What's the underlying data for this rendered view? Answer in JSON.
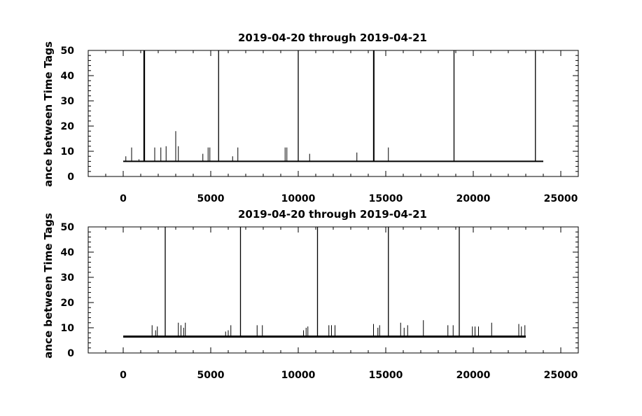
{
  "chart_data": [
    {
      "type": "line",
      "title": "2019-04-20 through 2019-04-21",
      "ylabel": "ance between Time Tags",
      "xlabel": "",
      "xlim": [
        -2000,
        26000
      ],
      "ylim": [
        0,
        50
      ],
      "xticks": [
        0,
        5000,
        10000,
        15000,
        20000,
        25000
      ],
      "yticks": [
        0,
        10,
        20,
        30,
        40,
        50
      ],
      "x_range": [
        0,
        24000
      ],
      "baseline": 6,
      "grid": false,
      "legend": "none",
      "series_color": "#000000",
      "spikes": [
        {
          "x": 150,
          "y": 8
        },
        {
          "x": 480,
          "y": 11.5
        },
        {
          "x": 900,
          "y": 6.8
        },
        {
          "x": 1180,
          "y": 50
        },
        {
          "x": 1220,
          "y": 50
        },
        {
          "x": 1800,
          "y": 11.5
        },
        {
          "x": 2150,
          "y": 11.5
        },
        {
          "x": 2450,
          "y": 12
        },
        {
          "x": 3000,
          "y": 18
        },
        {
          "x": 3150,
          "y": 12
        },
        {
          "x": 4550,
          "y": 9
        },
        {
          "x": 4850,
          "y": 11.5
        },
        {
          "x": 4950,
          "y": 11.5
        },
        {
          "x": 5450,
          "y": 50
        },
        {
          "x": 6250,
          "y": 8
        },
        {
          "x": 6550,
          "y": 11.5
        },
        {
          "x": 9250,
          "y": 11.5
        },
        {
          "x": 9350,
          "y": 11.5
        },
        {
          "x": 10000,
          "y": 50
        },
        {
          "x": 10650,
          "y": 9
        },
        {
          "x": 13350,
          "y": 9.5
        },
        {
          "x": 14300,
          "y": 50
        },
        {
          "x": 14330,
          "y": 50
        },
        {
          "x": 15150,
          "y": 11.5
        },
        {
          "x": 18900,
          "y": 50
        },
        {
          "x": 23550,
          "y": 50
        }
      ]
    },
    {
      "type": "line",
      "title": "2019-04-20 through 2019-04-21",
      "ylabel": "ance between Time Tags",
      "xlabel": "",
      "xlim": [
        -2000,
        26000
      ],
      "ylim": [
        0,
        50
      ],
      "xticks": [
        0,
        5000,
        10000,
        15000,
        20000,
        25000
      ],
      "yticks": [
        0,
        10,
        20,
        30,
        40,
        50
      ],
      "x_range": [
        0,
        23000
      ],
      "baseline": 6.5,
      "grid": false,
      "legend": "none",
      "series_color": "#000000",
      "spikes": [
        {
          "x": 1650,
          "y": 11
        },
        {
          "x": 1850,
          "y": 9
        },
        {
          "x": 1950,
          "y": 10.5
        },
        {
          "x": 2400,
          "y": 50
        },
        {
          "x": 3150,
          "y": 12
        },
        {
          "x": 3300,
          "y": 11
        },
        {
          "x": 3450,
          "y": 10
        },
        {
          "x": 3550,
          "y": 12
        },
        {
          "x": 5850,
          "y": 8.5
        },
        {
          "x": 6000,
          "y": 9
        },
        {
          "x": 6150,
          "y": 11
        },
        {
          "x": 6700,
          "y": 50
        },
        {
          "x": 7650,
          "y": 11
        },
        {
          "x": 7950,
          "y": 11
        },
        {
          "x": 10300,
          "y": 9
        },
        {
          "x": 10450,
          "y": 10
        },
        {
          "x": 10550,
          "y": 10.5
        },
        {
          "x": 11100,
          "y": 50
        },
        {
          "x": 11750,
          "y": 11
        },
        {
          "x": 11900,
          "y": 11
        },
        {
          "x": 12100,
          "y": 11
        },
        {
          "x": 14300,
          "y": 11.5
        },
        {
          "x": 14550,
          "y": 10
        },
        {
          "x": 14650,
          "y": 11
        },
        {
          "x": 15150,
          "y": 50
        },
        {
          "x": 15850,
          "y": 12
        },
        {
          "x": 16050,
          "y": 10
        },
        {
          "x": 16250,
          "y": 11
        },
        {
          "x": 17150,
          "y": 13
        },
        {
          "x": 18550,
          "y": 11
        },
        {
          "x": 18850,
          "y": 11
        },
        {
          "x": 19200,
          "y": 50
        },
        {
          "x": 19950,
          "y": 10.5
        },
        {
          "x": 20100,
          "y": 10.5
        },
        {
          "x": 20300,
          "y": 10.5
        },
        {
          "x": 21050,
          "y": 12
        },
        {
          "x": 22600,
          "y": 11.5
        },
        {
          "x": 22750,
          "y": 10.5
        },
        {
          "x": 22950,
          "y": 11
        }
      ]
    }
  ]
}
